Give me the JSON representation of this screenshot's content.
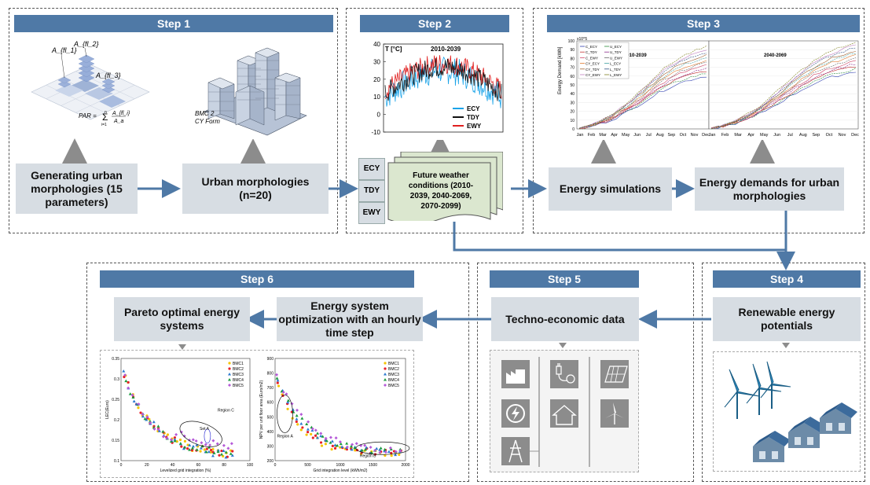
{
  "steps": {
    "s1": "Step 1",
    "s2": "Step 2",
    "s3": "Step 3",
    "s4": "Step 4",
    "s5": "Step 5",
    "s6": "Step 6"
  },
  "boxes": {
    "generating": "Generating urban morphologies (15 parameters)",
    "urban_morph": "Urban morphologies (n=20)",
    "future_weather": "Future weather conditions (2010-2039, 2040-2069, 2070-2099)",
    "energy_sim": "Energy simulations",
    "energy_demands": "Energy demands for urban morphologies",
    "renewable": "Renewable energy potentials",
    "techno": "Techno-economic data",
    "optimization": "Energy system optimization with an hourly time step",
    "pareto": "Pareto optimal energy systems"
  },
  "weather_types": [
    "ECY",
    "TDY",
    "EWY"
  ],
  "step1_images": {
    "par_formula_lhs": "PAR =",
    "par_sum_top": "n",
    "par_sum_bottom": "i=1",
    "par_frac_num": "A_{fl_i}",
    "par_frac_den": "A_a",
    "fl_labels": [
      "A_{fl_1}",
      "A_{fl_2}",
      "A_{fl_3}"
    ],
    "bmc_label": "BMC 2",
    "cy_label": "CY Form"
  },
  "chart_data": [
    {
      "type": "line",
      "title": "2010-2039",
      "ylabel": "T [°C]",
      "ylim": [
        -10,
        40
      ],
      "yticks": [
        -10,
        0,
        10,
        20,
        30,
        40
      ],
      "series": [
        {
          "name": "ECY",
          "color": "#1aa3e8"
        },
        {
          "name": "TDY",
          "color": "#111111"
        },
        {
          "name": "EWY",
          "color": "#e02020"
        }
      ]
    },
    {
      "type": "line",
      "ylabel": "Energy Demand [kWh]",
      "yscale_label": "x10^5",
      "ylim": [
        0,
        100
      ],
      "yticks": [
        0,
        10,
        20,
        30,
        40,
        50,
        60,
        70,
        80,
        90,
        100
      ],
      "panels": [
        "2010-2039",
        "2040-2069"
      ],
      "categories": [
        "Jan",
        "Feb",
        "Mar",
        "Apr",
        "May",
        "Jun",
        "Jul",
        "Aug",
        "Sep",
        "Oct",
        "Nov",
        "Dec"
      ],
      "legend": [
        "C_ECY",
        "U_ECY",
        "C_TDY",
        "U_TDY",
        "C_EWY",
        "U_EWY",
        "CY_ECY",
        "L_ECY",
        "CY_TDY",
        "L_TDY",
        "CY_EWY",
        "L_EWY"
      ]
    },
    {
      "type": "scatter",
      "xlabel": "Levelized grid integration (%)",
      "ylabel": "LEC(Euro)",
      "xlim": [
        0,
        100
      ],
      "ylim": [
        0.1,
        0.35
      ],
      "xticks": [
        0,
        20,
        40,
        60,
        80,
        100
      ],
      "yticks": [
        0.1,
        0.15,
        0.2,
        0.25,
        0.3,
        0.35
      ],
      "annotations": [
        "Region C",
        "Set A"
      ],
      "legend": [
        "BMC1",
        "BMC2",
        "BMC3",
        "BMC4",
        "BMC5"
      ],
      "series": [
        {
          "name": "BMC1",
          "color": "#f5c400"
        },
        {
          "name": "BMC2",
          "color": "#e8202a"
        },
        {
          "name": "BMC3",
          "color": "#2a78d0"
        },
        {
          "name": "BMC4",
          "color": "#1a9a3c"
        },
        {
          "name": "BMC5",
          "color": "#b55ad8"
        }
      ]
    },
    {
      "type": "scatter",
      "xlabel": "Grid integration level (kWh/m2)",
      "ylabel": "NPV per unit floor area (Euro/m2)",
      "xlim": [
        0,
        2000
      ],
      "ylim": [
        200,
        900
      ],
      "xticks": [
        0,
        500,
        1000,
        1500,
        2000
      ],
      "yticks": [
        200,
        300,
        400,
        500,
        600,
        700,
        800,
        900
      ],
      "annotations": [
        "Region A",
        "Region B"
      ],
      "legend": [
        "BMC1",
        "BMC2",
        "BMC3",
        "BMC4",
        "BMC5"
      ]
    }
  ],
  "colors": {
    "step_bar": "#4f79a6",
    "box": "#d7dde3",
    "arrow": "#4f79a6",
    "grey_arrow": "#8c8c8c"
  },
  "icons": [
    "factory-icon",
    "plug-icon",
    "solar-panel-icon",
    "lightning-icon",
    "house-icon",
    "wind-turbine-icon",
    "power-tower-icon"
  ]
}
